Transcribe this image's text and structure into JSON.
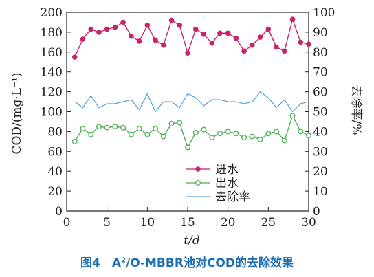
{
  "chart_data": {
    "type": "line",
    "caption": {
      "prefix": "图4　A",
      "superscript": "2",
      "suffix": "/O-MBBR池对COD的去除效果"
    },
    "xlabel": "t/d",
    "ylabel_left": "COD/(mg·L⁻¹)",
    "ylabel_right": "去除率/%",
    "xlim": [
      0,
      30
    ],
    "ylim_left": [
      0,
      200
    ],
    "ylim_right": [
      0,
      100
    ],
    "x_ticks": [
      "0",
      "5",
      "10",
      "15",
      "20",
      "25",
      "30"
    ],
    "y_ticks_left": [
      "0",
      "20",
      "40",
      "60",
      "80",
      "100",
      "120",
      "140",
      "160",
      "180",
      "200"
    ],
    "y_ticks_right": [
      "0",
      "10",
      "20",
      "30",
      "40",
      "50",
      "60",
      "70",
      "80",
      "90",
      "100"
    ],
    "legend_position": "bottom-center",
    "x": [
      1,
      2,
      3,
      4,
      5,
      6,
      7,
      8,
      9,
      10,
      11,
      12,
      13,
      14,
      15,
      16,
      17,
      18,
      19,
      20,
      21,
      22,
      23,
      24,
      25,
      26,
      27,
      28,
      29,
      30
    ],
    "series": [
      {
        "name": "进水",
        "axis": "left",
        "color": "#c8236b",
        "marker": "filled-circle",
        "values": [
          155,
          173,
          183,
          180,
          183,
          185,
          190,
          176,
          171,
          187,
          172,
          167,
          192,
          187,
          159,
          183,
          178,
          169,
          179,
          179,
          174,
          161,
          167,
          175,
          183,
          165,
          161,
          193,
          170,
          168
        ]
      },
      {
        "name": "出水",
        "axis": "left",
        "color": "#4caf50",
        "marker": "open-circle",
        "values": [
          70,
          83,
          77,
          85,
          84,
          85,
          84,
          77,
          83,
          77,
          83,
          75,
          88,
          89,
          64,
          79,
          82,
          74,
          78,
          80,
          78,
          74,
          75,
          72,
          78,
          80,
          71,
          96,
          80,
          76
        ]
      },
      {
        "name": "去除率",
        "axis": "right",
        "color": "#4d9fd6",
        "marker": "none",
        "values": [
          55,
          52,
          58,
          52,
          54,
          54,
          55,
          56,
          51,
          59,
          50,
          55,
          55,
          52,
          59,
          57,
          53,
          56,
          56,
          55,
          55,
          54,
          55,
          60,
          57,
          52,
          56,
          50,
          54,
          55
        ]
      }
    ]
  }
}
